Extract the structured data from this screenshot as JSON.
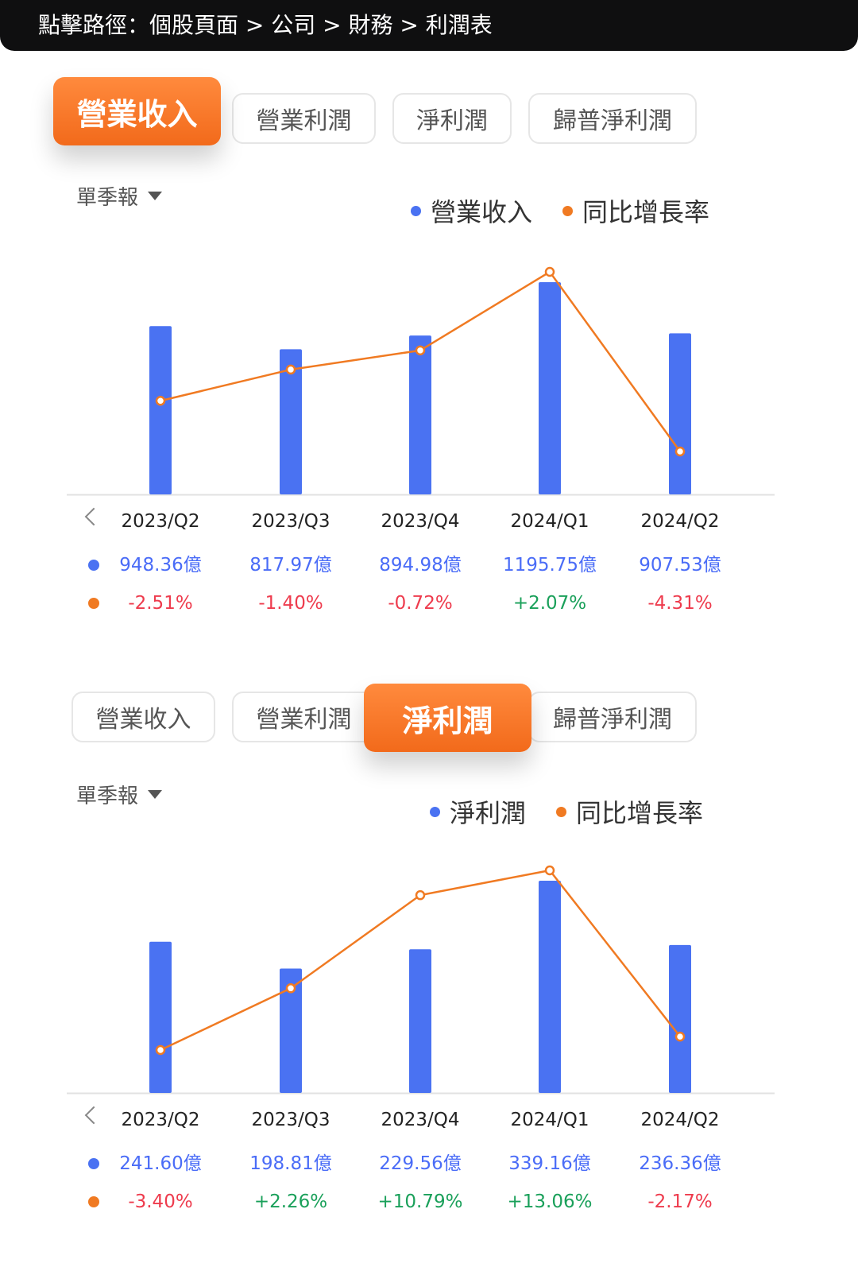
{
  "topbar": {
    "title": "點擊路徑：個股頁面 > 公司 > 財務 > 利潤表"
  },
  "colors": {
    "bar": "#4a72f2",
    "line": "#f07a22",
    "accent": "#f47a2c",
    "negative": "#ee3b4d",
    "positive": "#1aa05a"
  },
  "sections": [
    {
      "tabs": [
        "營業收入",
        "營業利潤",
        "淨利潤",
        "歸普淨利潤"
      ],
      "active_tab": 0,
      "period_label": "單季報",
      "legend": [
        "營業收入",
        "同比增長率"
      ],
      "quarters": [
        "2023/Q2",
        "2023/Q3",
        "2023/Q4",
        "2024/Q1",
        "2024/Q2"
      ],
      "value_labels": [
        "948.36億",
        "817.97億",
        "894.98億",
        "1195.75億",
        "907.53億"
      ],
      "growth_labels": [
        "-2.51%",
        "-1.40%",
        "-0.72%",
        "+2.07%",
        "-4.31%"
      ]
    },
    {
      "tabs": [
        "營業收入",
        "營業利潤",
        "淨利潤",
        "歸普淨利潤"
      ],
      "active_tab": 2,
      "period_label": "單季報",
      "legend": [
        "淨利潤",
        "同比增長率"
      ],
      "quarters": [
        "2023/Q2",
        "2023/Q3",
        "2023/Q4",
        "2024/Q1",
        "2024/Q2"
      ],
      "value_labels": [
        "241.60億",
        "198.81億",
        "229.56億",
        "339.16億",
        "236.36億"
      ],
      "growth_labels": [
        "-3.40%",
        "+2.26%",
        "+10.79%",
        "+13.06%",
        "-2.17%"
      ]
    }
  ],
  "chart_data": [
    {
      "type": "bar",
      "categories": [
        "2023/Q2",
        "2023/Q3",
        "2023/Q4",
        "2024/Q1",
        "2024/Q2"
      ],
      "series": [
        {
          "name": "營業收入",
          "type": "bar",
          "unit": "億",
          "values": [
            948.36,
            817.97,
            894.98,
            1195.75,
            907.53
          ]
        },
        {
          "name": "同比增長率",
          "type": "line",
          "unit": "%",
          "values": [
            -2.51,
            -1.4,
            -0.72,
            2.07,
            -4.31
          ]
        }
      ],
      "legend": "top-right"
    },
    {
      "type": "bar",
      "categories": [
        "2023/Q2",
        "2023/Q3",
        "2023/Q4",
        "2024/Q1",
        "2024/Q2"
      ],
      "series": [
        {
          "name": "淨利潤",
          "type": "bar",
          "unit": "億",
          "values": [
            241.6,
            198.81,
            229.56,
            339.16,
            236.36
          ]
        },
        {
          "name": "同比增長率",
          "type": "line",
          "unit": "%",
          "values": [
            -3.4,
            2.26,
            10.79,
            13.06,
            -2.17
          ]
        }
      ],
      "legend": "top-right"
    }
  ]
}
